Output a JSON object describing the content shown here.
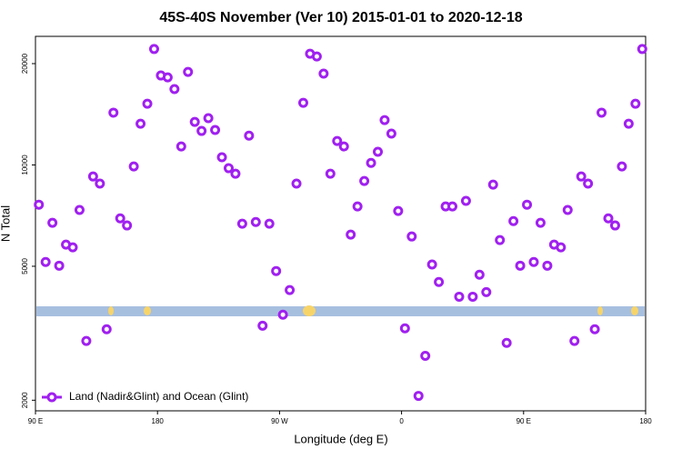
{
  "chart_data": {
    "type": "scatter",
    "title": "45S-40S November (Ver 10)   2015-01-01 to 2020-12-18",
    "x_label": "Longitude (deg E)",
    "y_label": "N Total",
    "log_y": true,
    "xlim": [
      90,
      540
    ],
    "xticks": [
      {
        "value": 90,
        "label": "90 E"
      },
      180,
      {
        "value": 270,
        "label": "90 W"
      },
      {
        "value": 360,
        "label": "0"
      },
      {
        "value": 450,
        "label": "90 E"
      },
      {
        "value": 540,
        "label": "180"
      }
    ],
    "ylim": [
      1860,
      24100
    ],
    "yticks": [
      2000,
      5000,
      10000,
      20000
    ],
    "legend": "bottom-left",
    "series": [
      {
        "name": "Land (Nadir&Glint) and Ocean (Glint)",
        "color": "#a020f0",
        "x": [
          92.5,
          97.5,
          102.5,
          107.5,
          112.5,
          117.5,
          122.5,
          127.5,
          132.5,
          137.5,
          142.5,
          147.5,
          152.5,
          157.5,
          162.5,
          167.5,
          172.5,
          177.5,
          182.5,
          187.5,
          192.5,
          197.5,
          202.5,
          207.5,
          212.5,
          217.5,
          222.5,
          227.5,
          232.5,
          237.5,
          242.5,
          247.5,
          252.5,
          257.5,
          262.5,
          267.5,
          272.5,
          277.5,
          282.5,
          287.5,
          292.5,
          297.5,
          302.5,
          307.5,
          312.5,
          317.5,
          322.5,
          327.5,
          332.5,
          337.5,
          342.5,
          347.5,
          352.5,
          357.5,
          362.5,
          367.5,
          372.5,
          377.5,
          382.5,
          387.5,
          392.5,
          397.5,
          402.5,
          407.5,
          412.5,
          417.5,
          422.5,
          427.5,
          432.5,
          437.5,
          442.5,
          447.5,
          452.5,
          457.5,
          462.5,
          467.5,
          472.5,
          477.5,
          482.5,
          487.5,
          492.5,
          497.5,
          502.5,
          507.5,
          512.5,
          517.5,
          522.5,
          527.5,
          532.5,
          537.5
        ],
        "values": [
          7620,
          5150,
          6730,
          5020,
          5800,
          5690,
          7350,
          3000,
          9240,
          8800,
          3250,
          14300,
          6940,
          6610,
          9900,
          13260,
          15200,
          22100,
          18440,
          18200,
          16800,
          11350,
          18900,
          13420,
          12620,
          13770,
          12700,
          10540,
          9780,
          9420,
          6690,
          12220,
          6770,
          3330,
          6690,
          4840,
          3590,
          4250,
          8800,
          15300,
          21400,
          21000,
          18680,
          9420,
          11780,
          11350,
          6210,
          7530,
          8960,
          10140,
          10940,
          13590,
          12390,
          7300,
          3270,
          6130,
          2060,
          2710,
          5060,
          4490,
          7530,
          7530,
          4060,
          7820,
          4060,
          4720,
          4190,
          8740,
          5980,
          2960,
          6810,
          5020,
          7620,
          5150,
          6730,
          5020,
          5800,
          5690,
          7350,
          3000,
          9240,
          8800,
          3250,
          14300,
          6940,
          6610,
          9900,
          13260,
          15200,
          22100
        ]
      }
    ]
  }
}
